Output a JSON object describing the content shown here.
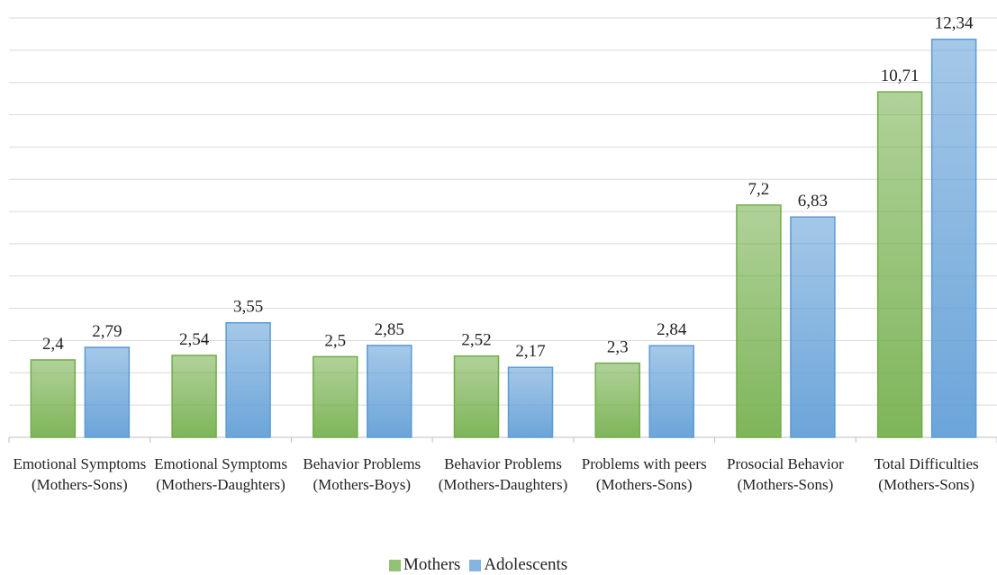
{
  "chart_data": {
    "type": "bar",
    "categories": [
      "Emotional Symptoms (Mothers-Sons)",
      "Emotional Symptoms (Mothers-Daughters)",
      "Behavior Problems (Mothers-Boys)",
      "Behavior Problems (Mothers-Daughters)",
      "Problems with peers (Mothers-Sons)",
      "Prosocial Behavior (Mothers-Sons)",
      "Total Difficulties (Mothers-Sons)"
    ],
    "series": [
      {
        "name": "Mothers",
        "color": "#70ad47",
        "values": [
          2.4,
          2.54,
          2.5,
          2.52,
          2.3,
          7.2,
          10.71
        ],
        "value_labels": [
          "2,4",
          "2,54",
          "2,5",
          "2,52",
          "2,3",
          "7,2",
          "10,71"
        ]
      },
      {
        "name": "Adolescents",
        "color": "#5b9bd5",
        "values": [
          2.79,
          3.55,
          2.85,
          2.17,
          2.84,
          6.83,
          12.34
        ],
        "value_labels": [
          "2,79",
          "3,55",
          "2,85",
          "2,17",
          "2,84",
          "6,83",
          "12,34"
        ]
      }
    ],
    "ylim": [
      0,
      13
    ],
    "yticks": [
      0,
      1,
      2,
      3,
      4,
      5,
      6,
      7,
      8,
      9,
      10,
      11,
      12,
      13
    ],
    "grid": true,
    "legend": "bottom"
  }
}
